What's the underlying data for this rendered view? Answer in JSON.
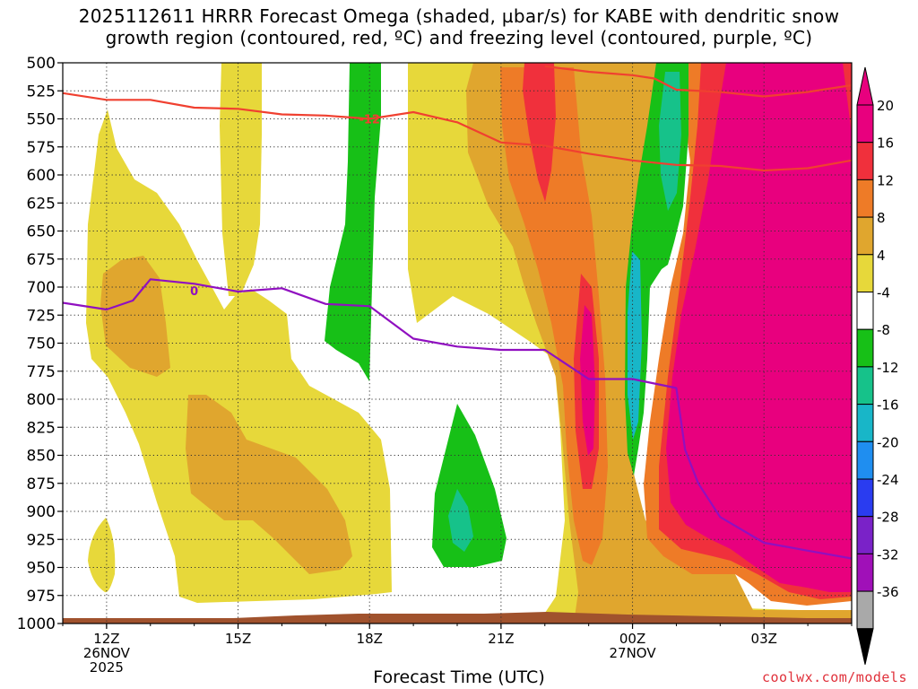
{
  "title_line1": "2025112611 HRRR Forecast Omega (shaded, µbar/s) for KABE with dendritic snow",
  "title_line2": "growth region (contoured, red, ºC) and freezing level (contoured, purple, ºC)",
  "xaxis_title": "Forecast Time (UTC)",
  "credit": "coolwx.com/models",
  "chart_data": {
    "type": "heatmap",
    "title": "2025112611 HRRR Forecast Omega (shaded, µbar/s) for KABE with dendritic snow growth region (contoured, red, ºC) and freezing level (contoured, purple, ºC)",
    "xlabel": "Forecast Time (UTC)",
    "ylabel": "",
    "x_range_hours": [
      11,
      29
    ],
    "x_ticks": [
      {
        "hour": 12,
        "label": "12Z",
        "sub": [
          "26NOV",
          "2025"
        ]
      },
      {
        "hour": 15,
        "label": "15Z",
        "sub": []
      },
      {
        "hour": 18,
        "label": "18Z",
        "sub": []
      },
      {
        "hour": 21,
        "label": "21Z",
        "sub": []
      },
      {
        "hour": 24,
        "label": "00Z",
        "sub": [
          "27NOV"
        ]
      },
      {
        "hour": 27,
        "label": "03Z",
        "sub": []
      }
    ],
    "y_ticks": [
      500,
      525,
      550,
      575,
      600,
      625,
      650,
      675,
      700,
      725,
      750,
      775,
      800,
      825,
      850,
      875,
      900,
      925,
      950,
      975,
      1000
    ],
    "y_range": [
      500,
      1000
    ],
    "grid": "dotted",
    "colorbar": {
      "labels": [
        "20",
        "16",
        "12",
        "8",
        "4",
        "-4",
        "-8",
        "-12",
        "-16",
        "-20",
        "-24",
        "-28",
        "-32",
        "-36"
      ],
      "colors": [
        "#e8007e",
        "#f0303c",
        "#ee7b27",
        "#e0a62e",
        "#e7d83a",
        "#ffffff",
        "#17c017",
        "#16c28a",
        "#18b6c8",
        "#1f8ef0",
        "#2a3cf0",
        "#7a22c8",
        "#a010b8",
        "#a9a9a9"
      ],
      "ends": {
        "top": "#e8007e",
        "bottom": "#000000"
      }
    },
    "contours": [
      {
        "name": "dendritic snow growth region",
        "color": "#f04030",
        "label": "-12",
        "points": [
          [
            11,
            527
          ],
          [
            12,
            533
          ],
          [
            13,
            533
          ],
          [
            14,
            540
          ],
          [
            15,
            541
          ],
          [
            16,
            546
          ],
          [
            17,
            547
          ],
          [
            18,
            550
          ],
          [
            19,
            544
          ],
          [
            20,
            553
          ],
          [
            21,
            571
          ],
          [
            22,
            574
          ],
          [
            23,
            581
          ],
          [
            24,
            587
          ],
          [
            25,
            591
          ],
          [
            26,
            592
          ],
          [
            27,
            596
          ],
          [
            28,
            594
          ],
          [
            29,
            587
          ]
        ]
      },
      {
        "name": "dendritic snow growth upper",
        "color": "#f04030",
        "label": "",
        "points": [
          [
            22,
            503
          ],
          [
            23,
            508
          ],
          [
            24,
            511
          ],
          [
            24.5,
            514
          ],
          [
            25,
            524
          ],
          [
            26,
            526
          ],
          [
            27,
            530
          ],
          [
            28,
            526
          ],
          [
            29,
            520
          ]
        ]
      },
      {
        "name": "freezing level",
        "color": "#9010c0",
        "label": "0",
        "points": [
          [
            11,
            714
          ],
          [
            12,
            720
          ],
          [
            12.6,
            712
          ],
          [
            13,
            693
          ],
          [
            14,
            697
          ],
          [
            15,
            704
          ],
          [
            16,
            701
          ],
          [
            17,
            715
          ],
          [
            18,
            717
          ],
          [
            19,
            746
          ],
          [
            20,
            753
          ],
          [
            21,
            756
          ],
          [
            22,
            756
          ],
          [
            23,
            782
          ],
          [
            24,
            782
          ],
          [
            25,
            790
          ],
          [
            25.2,
            845
          ],
          [
            25.5,
            875
          ],
          [
            26,
            905
          ],
          [
            27,
            928
          ],
          [
            28,
            935
          ],
          [
            29,
            942
          ]
        ]
      }
    ]
  }
}
